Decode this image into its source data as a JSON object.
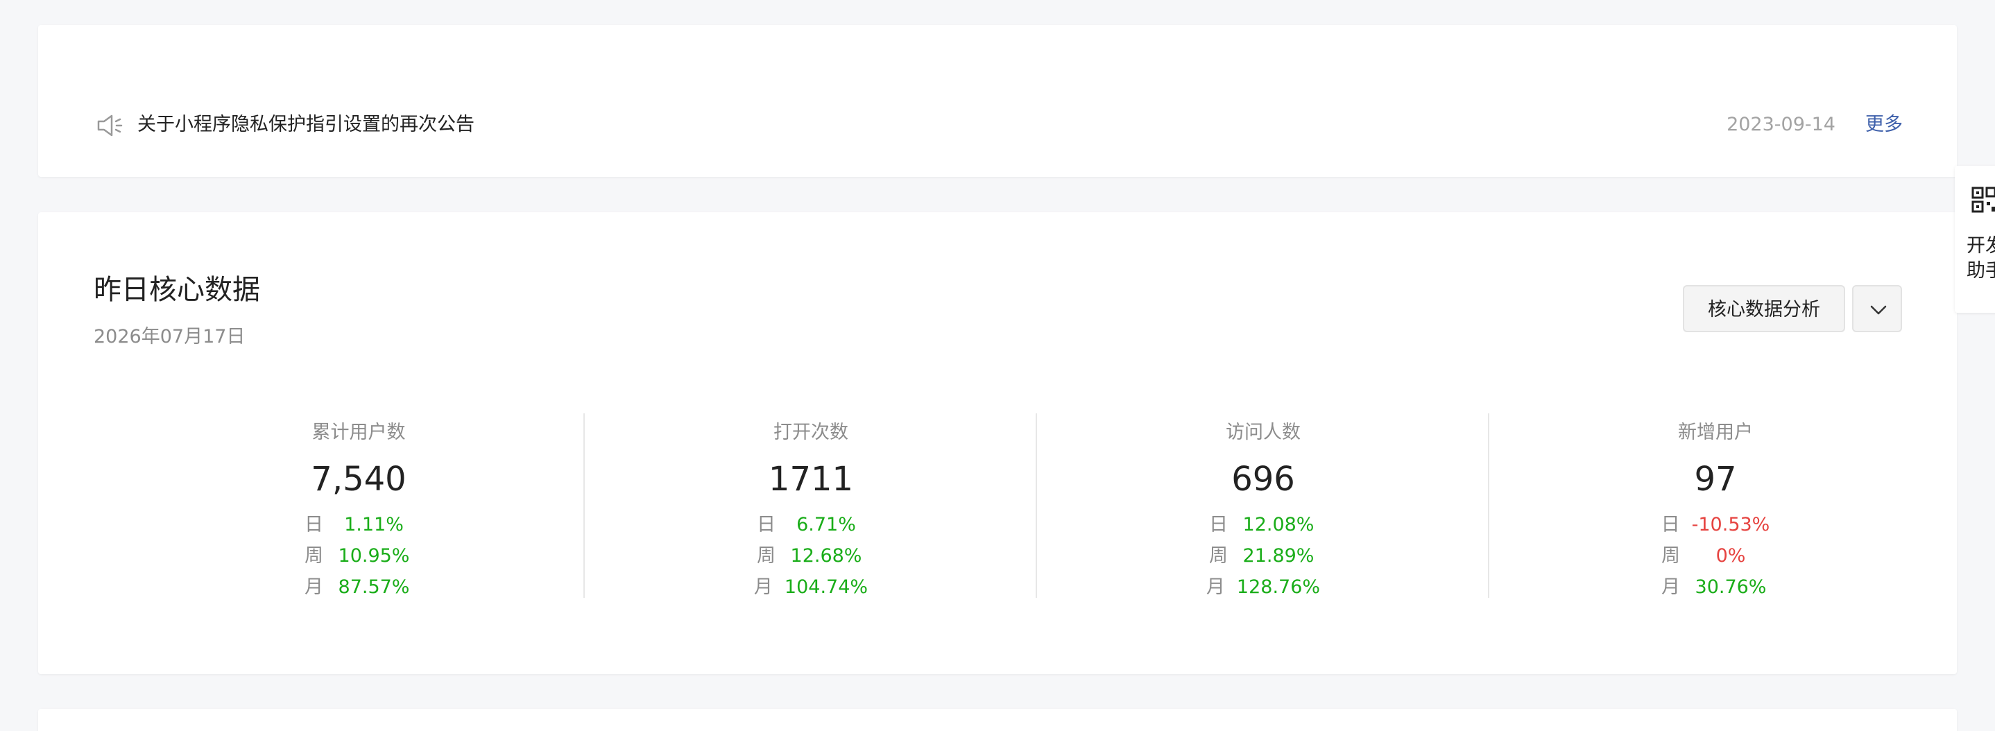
{
  "notice": {
    "title": "关于小程序隐私保护指引设置的再次公告",
    "date": "2023-09-14",
    "more_label": "更多"
  },
  "core": {
    "title": "昨日核心数据",
    "date": "2026年07月17日",
    "analysis_button": "核心数据分析",
    "stats": [
      {
        "label": "累计用户数",
        "value": "7,540",
        "rows": [
          {
            "k": "日",
            "v": "1.11%",
            "trend": "up"
          },
          {
            "k": "周",
            "v": "10.95%",
            "trend": "up"
          },
          {
            "k": "月",
            "v": "87.57%",
            "trend": "up"
          }
        ]
      },
      {
        "label": "打开次数",
        "value": "1711",
        "rows": [
          {
            "k": "日",
            "v": "6.71%",
            "trend": "up"
          },
          {
            "k": "周",
            "v": "12.68%",
            "trend": "up"
          },
          {
            "k": "月",
            "v": "104.74%",
            "trend": "up"
          }
        ]
      },
      {
        "label": "访问人数",
        "value": "696",
        "rows": [
          {
            "k": "日",
            "v": "12.08%",
            "trend": "up"
          },
          {
            "k": "周",
            "v": "21.89%",
            "trend": "up"
          },
          {
            "k": "月",
            "v": "128.76%",
            "trend": "up"
          }
        ]
      },
      {
        "label": "新增用户",
        "value": "97",
        "rows": [
          {
            "k": "日",
            "v": "-10.53%",
            "trend": "down"
          },
          {
            "k": "周",
            "v": "0%",
            "trend": "down"
          },
          {
            "k": "月",
            "v": "30.76%",
            "trend": "up"
          }
        ]
      }
    ]
  },
  "dev_helper": {
    "label": "开发助手"
  },
  "colors": {
    "up": "#1aad19",
    "down": "#e64340",
    "link": "#3d5faa",
    "muted": "#8c8c8c"
  },
  "icons": {
    "notice": "speaker-icon",
    "dropdown": "chevron-down-icon",
    "dev_helper": "qr-code-icon"
  }
}
